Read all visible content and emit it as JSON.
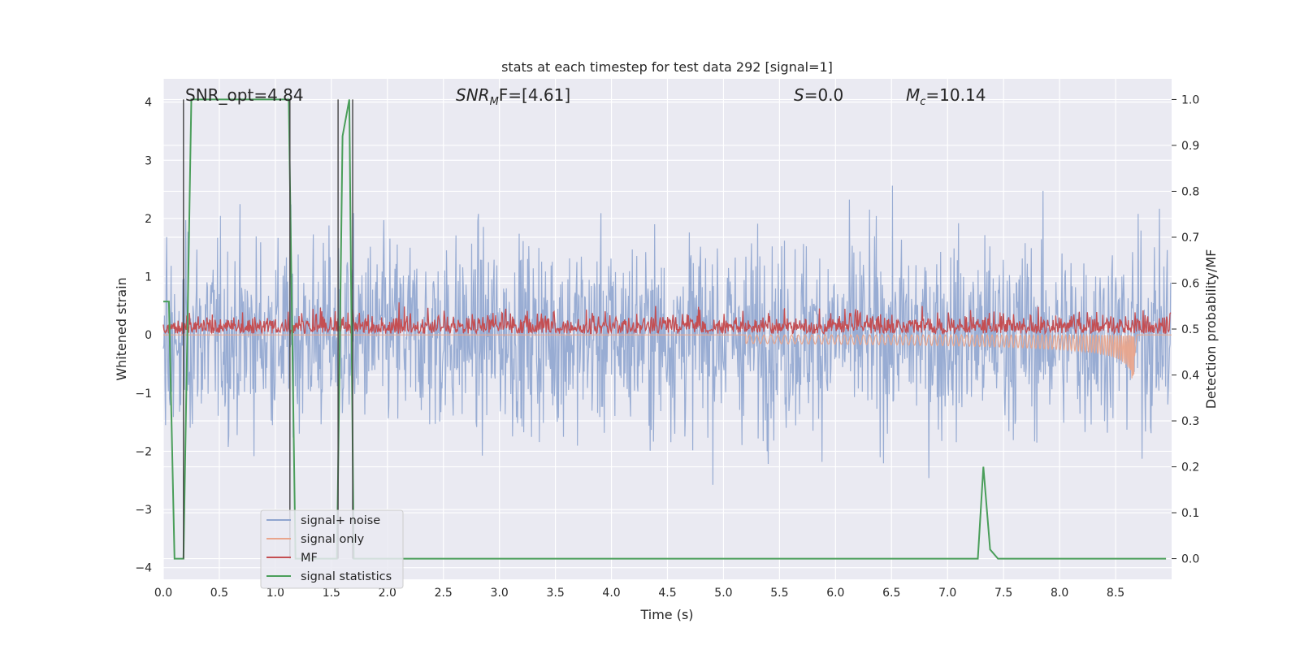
{
  "chart_data": {
    "type": "line",
    "title": "stats at each timestep for test data 292 [signal=1]",
    "xlabel": "Time (s)",
    "ylabel_left": "Whitened strain",
    "ylabel_right": "Detection probability/MF",
    "xlim": [
      0.0,
      9.0
    ],
    "ylim_left": [
      -4.2,
      4.4
    ],
    "ylim_right": [
      -0.045,
      1.045
    ],
    "x_ticks": [
      "0.0",
      "0.5",
      "1.0",
      "1.5",
      "2.0",
      "2.5",
      "3.0",
      "3.5",
      "4.0",
      "4.5",
      "5.0",
      "5.5",
      "6.0",
      "6.5",
      "7.0",
      "7.5",
      "8.0",
      "8.5"
    ],
    "y_ticks_left": [
      "−4",
      "−3",
      "−2",
      "−1",
      "0",
      "1",
      "2",
      "3",
      "4"
    ],
    "y_ticks_right": [
      "0.0",
      "0.1",
      "0.2",
      "0.3",
      "0.4",
      "0.5",
      "0.6",
      "0.7",
      "0.8",
      "0.9",
      "1.0"
    ],
    "grid": true,
    "legend_position": "lower-left",
    "annotations": {
      "snr_opt": "SNR_opt=4.84",
      "snr_mf_base": "SNR",
      "snr_mf_sub": "M",
      "snr_mf_rest": "F=[4.61]",
      "s_base": "S",
      "s_rest": "=0.0",
      "mc_base": "M",
      "mc_sub": "c",
      "mc_rest": "=10.14"
    },
    "series": [
      {
        "name": "signal+ noise",
        "color": "#8fa5cf",
        "axis": "left",
        "description_values": "whitened noise, roughly within [-3.7, 3.6]"
      },
      {
        "name": "signal only",
        "color": "#e9a58c",
        "axis": "left",
        "chirp": {
          "t_start": 5.2,
          "t_merge": 8.67,
          "peak_amplitude": -0.9
        }
      },
      {
        "name": "MF",
        "color": "#c44e52",
        "axis": "right",
        "range": [
          0.49,
          0.6
        ]
      },
      {
        "name": "signal statistics",
        "color": "#4a9e5a",
        "axis": "right",
        "x": [
          0.0,
          0.05,
          0.1,
          0.13,
          0.18,
          0.25,
          1.12,
          1.18,
          1.21,
          1.55,
          1.6,
          1.66,
          1.7,
          1.74,
          7.15,
          7.2,
          7.27,
          7.32,
          7.38,
          7.45,
          8.95
        ],
        "y": [
          0.56,
          0.56,
          0.0,
          0.0,
          0.0,
          1.0,
          1.0,
          0.0,
          0.0,
          0.0,
          0.92,
          1.0,
          0.0,
          0.0,
          0.0,
          0.0,
          0.0,
          0.2,
          0.02,
          0.0,
          0.0
        ]
      }
    ],
    "vertical_lines": [
      0.18,
      1.13,
      1.56,
      1.69
    ],
    "vertical_line_color": "#444444"
  }
}
